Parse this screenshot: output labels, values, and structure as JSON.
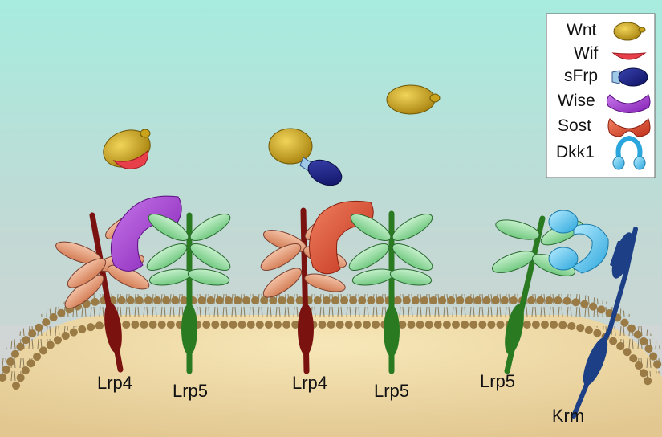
{
  "legend": {
    "items": [
      {
        "label": "Wnt",
        "icon": "wnt-ligand-icon"
      },
      {
        "label": "Wif",
        "icon": "wif-icon"
      },
      {
        "label": "sFrp",
        "icon": "sfrp-icon"
      },
      {
        "label": "Wise",
        "icon": "wise-icon"
      },
      {
        "label": "Sost",
        "icon": "sost-icon"
      },
      {
        "label": "Dkk1",
        "icon": "dkk1-icon"
      }
    ]
  },
  "receptors": {
    "lrp4_a": "Lrp4",
    "lrp5_a": "Lrp5",
    "lrp4_b": "Lrp4",
    "lrp5_b": "Lrp5",
    "lrp5_c": "Lrp5",
    "krm": "Krm"
  },
  "colors": {
    "wnt": "#c9a31a",
    "wif": "#e8404a",
    "sfrp": "#1a1f7a",
    "wise": "#9b35c9",
    "sost": "#d8432a",
    "dkk1": "#49b8e6",
    "lrp4": "#7a1210",
    "lrp5": "#2a7a22",
    "krm": "#1d3f86",
    "lrp4_leaf": "#e2906a",
    "lrp5_leaf": "#8fd59a"
  }
}
